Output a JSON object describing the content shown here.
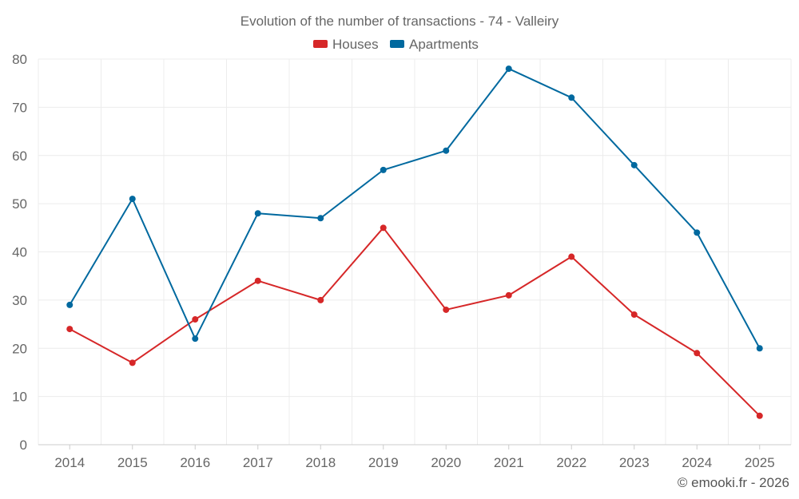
{
  "chart_data": {
    "type": "line",
    "title": "Evolution of the number of transactions - 74 - Valleiry",
    "categories": [
      "2014",
      "2015",
      "2016",
      "2017",
      "2018",
      "2019",
      "2020",
      "2021",
      "2022",
      "2023",
      "2024",
      "2025"
    ],
    "series": [
      {
        "name": "Houses",
        "color": "#d62728",
        "values": [
          24,
          17,
          26,
          34,
          30,
          45,
          28,
          31,
          39,
          27,
          19,
          6
        ]
      },
      {
        "name": "Apartments",
        "color": "#00699f",
        "values": [
          29,
          51,
          22,
          48,
          47,
          57,
          61,
          78,
          72,
          58,
          44,
          20
        ]
      }
    ],
    "ylim": [
      0,
      80
    ],
    "yticks": [
      "0",
      "10",
      "20",
      "30",
      "40",
      "50",
      "60",
      "70",
      "80"
    ],
    "grid": true,
    "legend": "top-center",
    "xlabel": "",
    "ylabel": ""
  },
  "credit": "© emooki.fr - 2026"
}
